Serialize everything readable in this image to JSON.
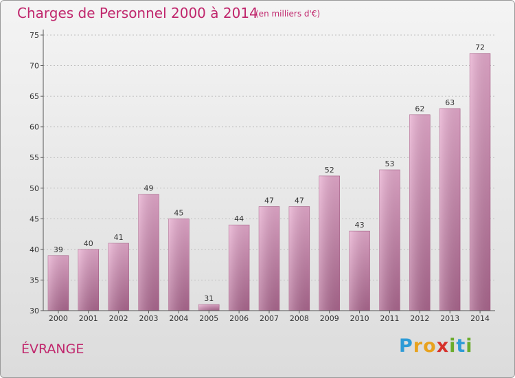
{
  "page": {
    "title": "Charges de Personnel 2000 à 2014",
    "subtitle": "(en milliers d'€)",
    "commune": "ÉVRANGE",
    "logo": {
      "text": "Proxiti",
      "letters": [
        {
          "char": "P",
          "color": "#2e9bd6"
        },
        {
          "char": "r",
          "color": "#e8a21e"
        },
        {
          "char": "o",
          "color": "#e8a21e"
        },
        {
          "char": "x",
          "color": "#d6312b"
        },
        {
          "char": "i",
          "color": "#6aab2b"
        },
        {
          "char": "t",
          "color": "#2e9bd6"
        },
        {
          "char": "i",
          "color": "#6aab2b"
        }
      ]
    },
    "colors": {
      "accent": "#c0266c",
      "bar_light": "#e6a8cc",
      "bar_dark": "#b06a92"
    }
  },
  "chart_data": {
    "type": "bar",
    "categories": [
      "2000",
      "2001",
      "2002",
      "2003",
      "2004",
      "2005",
      "2006",
      "2007",
      "2008",
      "2009",
      "2010",
      "2011",
      "2012",
      "2013",
      "2014"
    ],
    "values": [
      39,
      40,
      41,
      49,
      45,
      31,
      44,
      47,
      47,
      52,
      43,
      53,
      62,
      63,
      72
    ],
    "title": "Charges de Personnel 2000 à 2014",
    "ylim": [
      30,
      75
    ],
    "yticks": [
      30,
      35,
      40,
      45,
      50,
      55,
      60,
      65,
      70,
      75
    ],
    "grid": true,
    "data_labels": true
  }
}
